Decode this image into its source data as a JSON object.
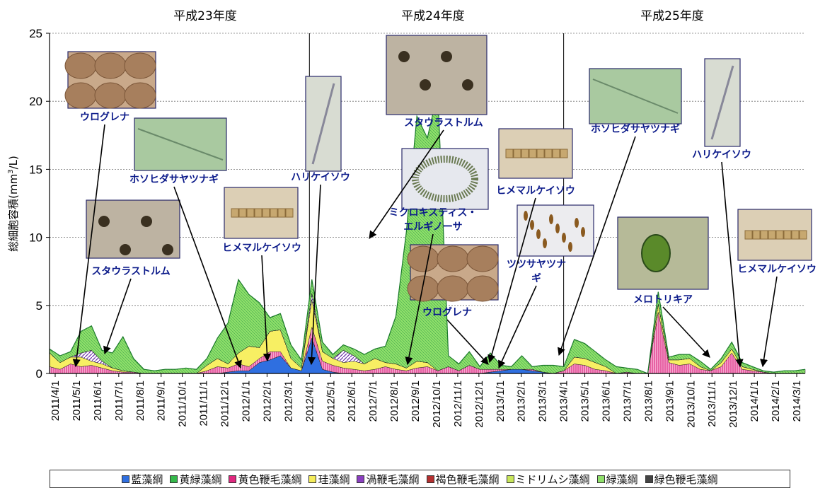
{
  "chart_data": {
    "type": "area",
    "ylabel": "総細胞容積(mm³/L)",
    "ylabel_parts": {
      "pre": "総細胞容積(mm",
      "sup": "3",
      "post": "/L)"
    },
    "ylim": [
      0,
      25
    ],
    "yticks": [
      "0",
      "5",
      "10",
      "15",
      "20",
      "25"
    ],
    "period_labels": [
      "平成23年度",
      "平成24年度",
      "平成25年度"
    ],
    "x_tick_labels": [
      "2011/4/1",
      "2011/5/1",
      "2011/6/1",
      "2011/7/1",
      "2011/8/1",
      "2011/9/1",
      "2011/10/1",
      "2011/11/1",
      "2011/12/1",
      "2012/1/1",
      "2012/2/1",
      "2012/3/1",
      "2012/4/1",
      "2012/5/1",
      "2012/6/1",
      "2012/7/1",
      "2012/8/1",
      "2012/9/1",
      "2012/10/1",
      "2012/11/1",
      "2012/12/1",
      "2013/1/1",
      "2013/2/1",
      "2013/3/1",
      "2013/4/1",
      "2013/5/1",
      "2013/6/1",
      "2013/7/1",
      "2013/8/1",
      "2013/9/1",
      "2013/10/1",
      "2013/11/1",
      "2013/12/1",
      "2014/1/1",
      "2014/2/1",
      "2014/3/1"
    ],
    "grid": true,
    "legend_position": "bottom",
    "series": [
      {
        "name": "藍藻綱",
        "color": "#2f6fe0",
        "values": [
          0,
          0,
          0,
          0,
          0,
          0,
          0,
          0,
          0,
          0,
          0,
          0,
          0,
          0,
          0,
          0,
          0,
          0.1,
          0.2,
          0.2,
          0.8,
          1.0,
          1.3,
          0.4,
          0.2,
          2.6,
          0.3,
          0.1,
          0,
          0,
          0,
          0,
          0,
          0,
          0,
          0,
          0,
          0,
          0,
          0,
          0,
          0,
          0.1,
          0.2,
          0.3,
          0.3,
          0.2,
          0.1,
          0,
          0,
          0,
          0,
          0,
          0,
          0,
          0,
          0,
          0,
          0,
          0,
          0,
          0,
          0,
          0,
          0,
          0,
          0,
          0,
          0,
          0,
          0,
          0,
          0
        ]
      },
      {
        "name": "黄緑藻綱",
        "color": "#35b84a",
        "values": [
          0,
          0,
          0,
          0,
          0,
          0,
          0,
          0,
          0,
          0,
          0,
          0,
          0,
          0,
          0,
          0,
          0,
          0,
          0,
          0,
          0,
          0,
          0,
          0,
          0,
          0,
          0,
          0,
          0,
          0,
          0,
          0,
          0,
          0,
          0,
          0,
          0,
          0,
          0,
          0,
          0,
          0,
          0,
          0,
          0,
          0,
          0,
          0,
          0,
          0,
          0,
          0,
          0,
          0,
          0,
          0,
          0,
          0,
          0,
          0,
          0,
          0,
          0,
          0,
          0,
          0,
          0,
          0,
          0,
          0,
          0,
          0,
          0
        ]
      },
      {
        "name": "黄色鞭毛藻綱",
        "color": "#e0287f",
        "values": [
          0.5,
          0.3,
          0.7,
          0.5,
          0.6,
          0.4,
          0.2,
          0.1,
          0.1,
          0,
          0,
          0,
          0,
          0,
          0,
          0.2,
          0.5,
          0.3,
          0.5,
          0.3,
          0.3,
          0.6,
          0.3,
          0,
          0,
          0.8,
          0.6,
          0.5,
          0.4,
          0.3,
          0.2,
          0.3,
          0.5,
          0.3,
          0.2,
          0.4,
          0.5,
          0.2,
          0.5,
          0.2,
          0.6,
          0.3,
          0.2,
          0.1,
          0,
          0,
          0.1,
          0,
          0,
          0.2,
          0.7,
          0.6,
          0.3,
          0.2,
          0,
          0.1,
          0,
          0,
          4.5,
          0.8,
          0.6,
          0.7,
          0.3,
          0.2,
          0.5,
          1.5,
          0.3,
          0.2,
          0.1,
          0,
          0,
          0,
          0
        ]
      },
      {
        "name": "珪藻綱",
        "color": "#f4ec5a",
        "values": [
          1.0,
          0.5,
          0.5,
          0.7,
          0.3,
          0.3,
          0.2,
          0.1,
          0,
          0,
          0,
          0,
          0,
          0,
          0,
          0.4,
          0.6,
          0.3,
          0.8,
          1.5,
          0.8,
          1.5,
          1.6,
          0.7,
          0.2,
          2.0,
          0.7,
          0.5,
          0.4,
          0.6,
          0.5,
          0.8,
          0.3,
          0.4,
          0.2,
          0.5,
          0.3,
          0,
          0,
          0,
          0,
          0,
          0,
          0,
          0,
          0,
          0,
          0,
          0,
          0,
          0.5,
          0.5,
          0.5,
          0.3,
          0,
          0,
          0,
          0,
          0.6,
          0.2,
          0.4,
          0.4,
          0.2,
          0,
          0.3,
          0.3,
          0.2,
          0.1,
          0,
          0,
          0,
          0,
          0
        ]
      },
      {
        "name": "渦鞭毛藻綱",
        "color": "#8a3fc0",
        "values": [
          0,
          0,
          0,
          0.3,
          0.8,
          0.2,
          0,
          0,
          0,
          0,
          0,
          0,
          0,
          0,
          0,
          0,
          0,
          0,
          0,
          0,
          0,
          0,
          0,
          0,
          0,
          0.5,
          0,
          0,
          0.9,
          0.4,
          0,
          0,
          0,
          0,
          0,
          0,
          0,
          0,
          0,
          0,
          0,
          0,
          0,
          0,
          0,
          0,
          0,
          0,
          0,
          0,
          0,
          0,
          0,
          0,
          0,
          0,
          0,
          0,
          0,
          0,
          0,
          0,
          0,
          0,
          0,
          0,
          0,
          0,
          0,
          0,
          0,
          0,
          0
        ]
      },
      {
        "name": "褐色鞭毛藻綱",
        "color": "#b43030",
        "values": [
          0,
          0,
          0,
          0,
          0,
          0,
          0,
          0,
          0,
          0,
          0,
          0,
          0,
          0,
          0,
          0,
          0,
          0,
          0,
          0,
          0,
          0,
          0,
          0,
          0,
          0,
          0,
          0,
          0,
          0,
          0,
          0,
          0,
          0,
          0,
          0,
          0,
          0,
          0,
          0,
          0,
          0,
          0,
          0,
          0,
          0,
          0,
          0,
          0,
          0,
          0,
          0,
          0,
          0,
          0,
          0,
          0,
          0,
          0,
          0,
          0,
          0,
          0,
          0,
          0,
          0,
          0,
          0,
          0,
          0,
          0,
          0,
          0
        ]
      },
      {
        "name": "ミドリムシ藻綱",
        "color": "#c8e65a",
        "values": [
          0,
          0,
          0,
          0,
          0,
          0,
          0,
          0,
          0,
          0,
          0,
          0,
          0,
          0,
          0,
          0,
          0,
          0,
          0,
          0,
          0,
          0,
          0,
          0,
          0,
          0,
          0,
          0,
          0,
          0,
          0,
          0,
          0,
          0,
          0,
          0,
          0,
          0,
          0,
          0,
          0,
          0,
          0,
          0,
          0,
          0,
          0,
          0,
          0,
          0,
          0,
          0,
          0,
          0,
          0,
          0,
          0,
          0,
          0,
          0,
          0,
          0,
          0,
          0,
          0,
          0,
          0,
          0,
          0,
          0,
          0,
          0,
          0
        ]
      },
      {
        "name": "緑藻綱",
        "color": "#8fe06a",
        "values": [
          0.3,
          0.5,
          0.4,
          1.6,
          1.8,
          0.8,
          1.1,
          2.5,
          1.0,
          0.3,
          0.2,
          0.3,
          0.3,
          0.4,
          0.3,
          0.5,
          1.5,
          3.0,
          5.4,
          3.8,
          3.3,
          1.0,
          1.2,
          1.0,
          0.6,
          1.0,
          0.7,
          0.3,
          0.4,
          0.5,
          0.7,
          0.7,
          1.2,
          3.5,
          10,
          18,
          16.5,
          20.5,
          0.8,
          0.5,
          1.0,
          0.2,
          1.2,
          0.3,
          0.2,
          1.0,
          0.2,
          0.5,
          0.6,
          0.3,
          1.3,
          1.1,
          0.8,
          0.5,
          0.5,
          0.3,
          0.3,
          0,
          0.9,
          0.2,
          0.4,
          0.3,
          0.4,
          0.1,
          0.3,
          0.5,
          0.3,
          0.2,
          0.1,
          0.1,
          0.2,
          0.2,
          0.3
        ]
      },
      {
        "name": "緑色鞭毛藻綱",
        "color": "#444444",
        "values": [
          0,
          0,
          0,
          0,
          0,
          0,
          0,
          0,
          0,
          0,
          0,
          0,
          0,
          0,
          0,
          0,
          0,
          0,
          0,
          0,
          0,
          0,
          0,
          0,
          0,
          0,
          0,
          0,
          0,
          0,
          0,
          0,
          0,
          0,
          0,
          0,
          0,
          0,
          0,
          0,
          0,
          0,
          0,
          0,
          0,
          0,
          0,
          0,
          0,
          0,
          0,
          0,
          0,
          0,
          0,
          0,
          0,
          0,
          0,
          0,
          0,
          0,
          0,
          0,
          0,
          0,
          0,
          0,
          0,
          0,
          0,
          0,
          0
        ]
      }
    ],
    "annotations": [
      {
        "label": "ウログレナ",
        "photo": "urogrena"
      },
      {
        "label": "ホソヒダサヤツナギ",
        "photo": "filament"
      },
      {
        "label": "スタウラストルム",
        "photo": "staurastrum"
      },
      {
        "label": "ヒメマルケイソウ",
        "photo": "chain"
      },
      {
        "label": "ハリケイソウ",
        "photo": "needle"
      },
      {
        "label": "スタウラストルム",
        "photo": "staurastrum"
      },
      {
        "label": "ミクロキスティス・\nエルギノーサ",
        "photo": "microcystis"
      },
      {
        "label": "ウログレナ",
        "photo": "urogrena"
      },
      {
        "label": "ヒメマルケイソウ",
        "photo": "chain"
      },
      {
        "label": "ツツサヤツナ\nギ",
        "photo": "tsutsu"
      },
      {
        "label": "ホソヒダサヤツナギ",
        "photo": "filament"
      },
      {
        "label": "ハリケイソウ",
        "photo": "needle"
      },
      {
        "label": "メロトリキア",
        "photo": "melotrichia"
      },
      {
        "label": "ヒメマルケイソウ",
        "photo": "chain"
      }
    ]
  }
}
